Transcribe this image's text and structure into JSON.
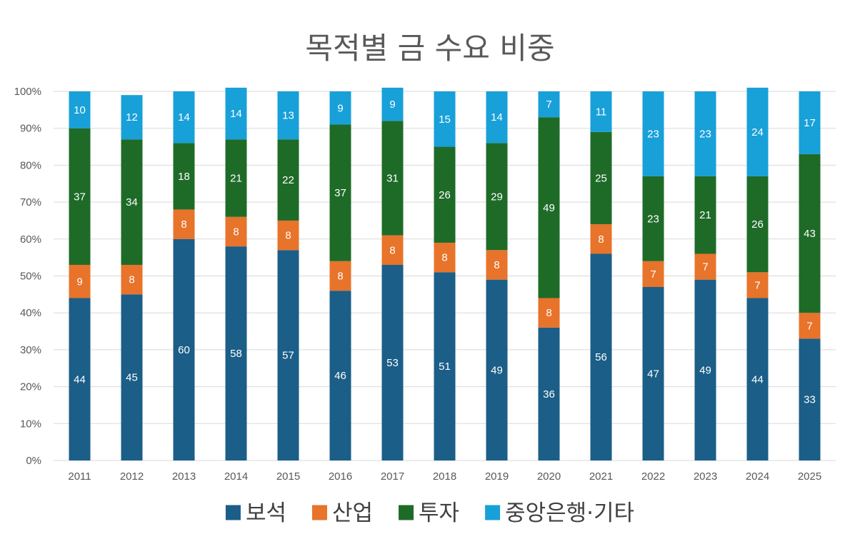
{
  "chart_data": {
    "type": "bar",
    "stacked": true,
    "title": "목적별 금 수요 비중",
    "categories": [
      "2011",
      "2012",
      "2013",
      "2014",
      "2015",
      "2016",
      "2017",
      "2018",
      "2019",
      "2020",
      "2021",
      "2022",
      "2023",
      "2024",
      "2025"
    ],
    "series": [
      {
        "name": "보석",
        "color": "#1b5e87",
        "values": [
          44,
          45,
          60,
          58,
          57,
          46,
          53,
          51,
          49,
          36,
          56,
          47,
          49,
          44,
          33
        ]
      },
      {
        "name": "산업",
        "color": "#e8732a",
        "values": [
          9,
          8,
          8,
          8,
          8,
          8,
          8,
          8,
          8,
          8,
          8,
          7,
          7,
          7,
          7
        ]
      },
      {
        "name": "투자",
        "color": "#1e6b28",
        "values": [
          37,
          34,
          18,
          21,
          22,
          37,
          31,
          26,
          29,
          49,
          25,
          23,
          21,
          26,
          43
        ]
      },
      {
        "name": "중앙은행·기타",
        "color": "#18a0d8",
        "values": [
          10,
          12,
          14,
          14,
          13,
          9,
          9,
          15,
          14,
          7,
          11,
          23,
          23,
          24,
          17
        ]
      }
    ],
    "y_ticks": [
      "0%",
      "10%",
      "20%",
      "30%",
      "40%",
      "50%",
      "60%",
      "70%",
      "80%",
      "90%",
      "100%"
    ],
    "ylim": [
      0,
      100
    ],
    "xlabel": "",
    "ylabel": "",
    "grid": true,
    "data_labels": true,
    "legend_position": "bottom"
  }
}
